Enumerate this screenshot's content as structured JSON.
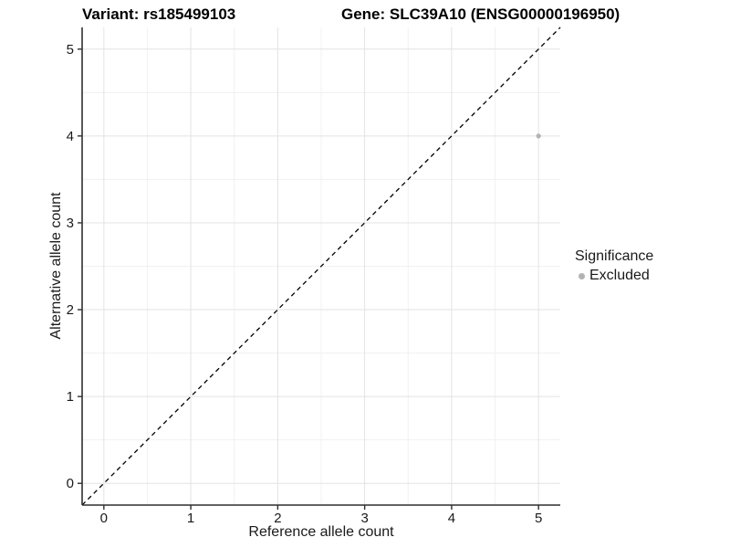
{
  "titles": {
    "variant": "Variant: rs185499103",
    "gene": "Gene: SLC39A10 (ENSG00000196950)"
  },
  "axes": {
    "x_label": "Reference allele count",
    "y_label": "Alternative allele count"
  },
  "legend": {
    "title": "Significance",
    "items": [
      {
        "label": "Excluded",
        "color": "#b3b3b3",
        "marker": "circle"
      }
    ]
  },
  "chart_data": {
    "type": "scatter",
    "title": "Variant: rs185499103 | Gene: SLC39A10 (ENSG00000196950)",
    "xlabel": "Reference allele count",
    "ylabel": "Alternative allele count",
    "xlim": [
      -0.25,
      5.25
    ],
    "ylim": [
      -0.25,
      5.25
    ],
    "x_ticks": [
      0,
      1,
      2,
      3,
      4,
      5
    ],
    "y_ticks": [
      0,
      1,
      2,
      3,
      4,
      5
    ],
    "grid": "major+minor",
    "legend_position": "right",
    "series": [
      {
        "name": "Excluded",
        "color": "#b3b3b3",
        "points": [
          [
            5,
            4
          ]
        ]
      }
    ],
    "reference_line": {
      "slope": 1,
      "intercept": 0,
      "style": "dashed",
      "color": "#000000"
    }
  },
  "colors": {
    "background": "#ffffff",
    "grid_major": "#e3e3e3",
    "grid_minor": "#f1f1f1",
    "axis_line": "#2f2f2f",
    "tick_label": "#1a1a1a",
    "point": "#b3b3b3"
  }
}
